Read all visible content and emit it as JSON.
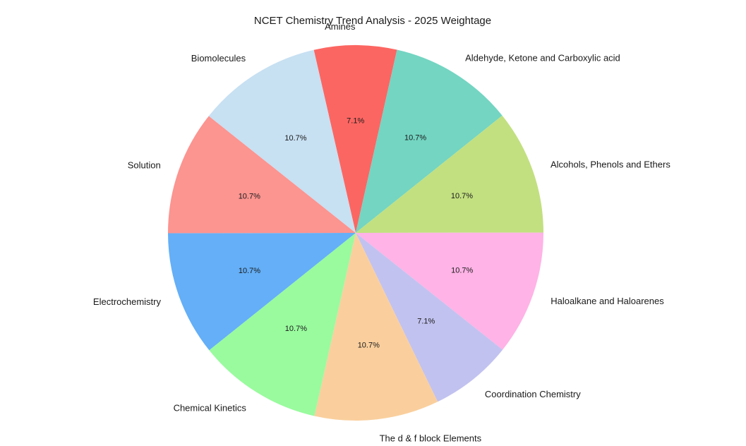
{
  "chart_data": {
    "type": "pie",
    "title": "NCET Chemistry Trend Analysis - 2025 Weightage",
    "legend": "none",
    "grid": "off",
    "start_angle_deg_clockwise_from_north": -12.9,
    "label_radius_ratio": 1.1,
    "pct_radius_ratio": 0.6,
    "text_color": "#1a1a1a",
    "background_color": "#ffffff",
    "slices": [
      {
        "label": "Amines",
        "value": 7.1,
        "pct_label": "7.1%",
        "color": "#FC6662"
      },
      {
        "label": "Aldehyde, Ketone and Carboxylic acid",
        "value": 10.7,
        "pct_label": "10.7%",
        "color": "#73D5C2"
      },
      {
        "label": "Alcohols, Phenols and Ethers",
        "value": 10.7,
        "pct_label": "10.7%",
        "color": "#C2E080"
      },
      {
        "label": "Haloalkane and Haloarenes",
        "value": 10.7,
        "pct_label": "10.7%",
        "color": "#FFB3E6"
      },
      {
        "label": "Coordination Chemistry",
        "value": 7.1,
        "pct_label": "7.1%",
        "color": "#C2C2F0"
      },
      {
        "label": "The d & f block Elements",
        "value": 10.7,
        "pct_label": "10.7%",
        "color": "#FACF9D"
      },
      {
        "label": "Chemical Kinetics",
        "value": 10.7,
        "pct_label": "10.7%",
        "color": "#99FB9E"
      },
      {
        "label": "Electrochemistry",
        "value": 10.7,
        "pct_label": "10.7%",
        "color": "#64AFF7"
      },
      {
        "label": "Solution",
        "value": 10.7,
        "pct_label": "10.7%",
        "color": "#FC9490"
      },
      {
        "label": "Biomolecules",
        "value": 10.7,
        "pct_label": "10.7%",
        "color": "#C7E0F2"
      }
    ]
  }
}
